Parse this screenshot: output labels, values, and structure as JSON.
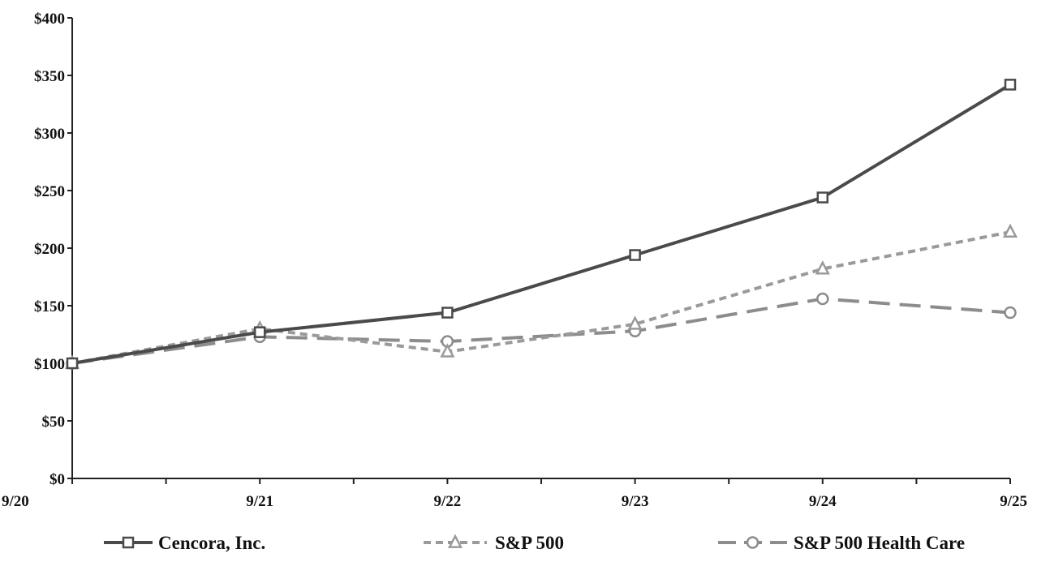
{
  "chart_data": {
    "type": "line",
    "title": "",
    "xlabel": "",
    "ylabel": "",
    "categories": [
      "9/20",
      "9/21",
      "9/22",
      "9/23",
      "9/24",
      "9/25"
    ],
    "y_ticks": [
      "$0",
      "$50",
      "$100",
      "$150",
      "$200",
      "$250",
      "$300",
      "$350",
      "$400"
    ],
    "ylim": [
      0,
      400
    ],
    "grid": false,
    "legend_position": "bottom",
    "series": [
      {
        "name": "Cencora, Inc.",
        "values": [
          100,
          127,
          144,
          194,
          244,
          342
        ],
        "color": "#4a4a4a",
        "marker": "square",
        "dash": "solid"
      },
      {
        "name": "S&P 500",
        "values": [
          100,
          130,
          110,
          134,
          182,
          214
        ],
        "color": "#9a9a9a",
        "marker": "triangle",
        "dash": "short"
      },
      {
        "name": "S&P 500 Health Care",
        "values": [
          100,
          123,
          119,
          128,
          156,
          144
        ],
        "color": "#8c8c8c",
        "marker": "circle",
        "dash": "long"
      }
    ]
  }
}
